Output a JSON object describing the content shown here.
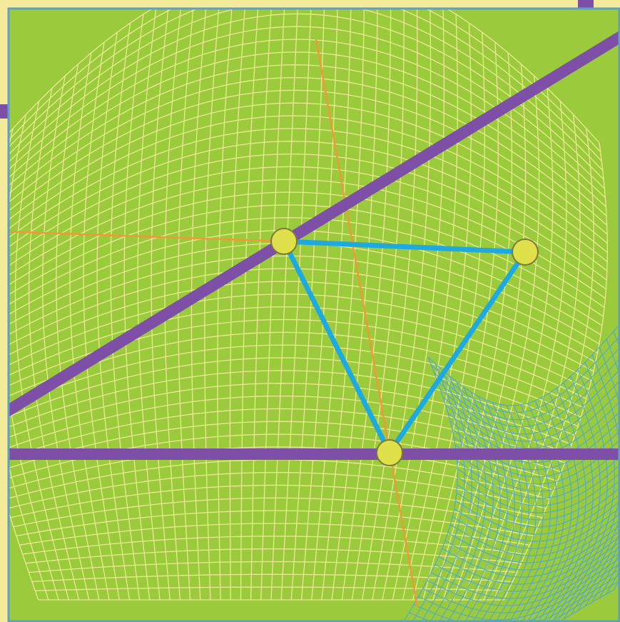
{
  "artwork": {
    "colors": {
      "field": "#9bcb3c",
      "outer_margin": "#f4ec9c",
      "frame_border": "#5aa0c8",
      "yellow_mesh": "#f2ee9a",
      "blue_mesh": "#4aa6d6",
      "purple_line": "#7d4fa6",
      "orange_line": "#ef9a3a",
      "triangle": "#1eaadf",
      "node_fill": "#dfe04a",
      "node_stroke": "#7a7a3a"
    }
  }
}
